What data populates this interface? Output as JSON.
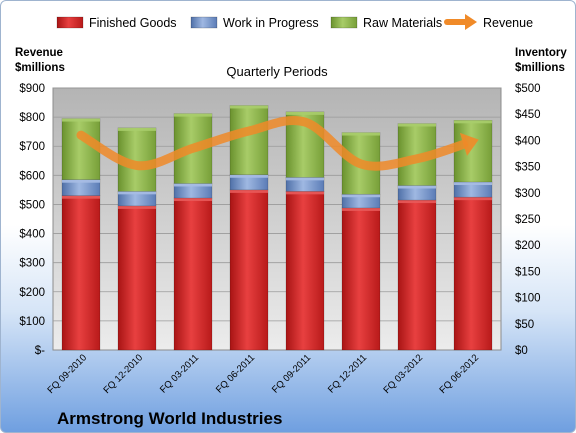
{
  "chart_data": {
    "type": "bar",
    "stacked": true,
    "title": "Quarterly Periods",
    "subtitle": "Armstrong World Industries",
    "categories": [
      "FQ 09-2010",
      "FQ 12-2010",
      "FQ 03-2011",
      "FQ 06-2011",
      "FQ 09-2011",
      "FQ 12-2011",
      "FQ 03-2012",
      "FQ 06-2012"
    ],
    "series": [
      {
        "name": "Finished Goods",
        "axis": "left",
        "color": "#d42020",
        "values": [
          530,
          495,
          522,
          550,
          545,
          488,
          515,
          525
        ]
      },
      {
        "name": "Work in Progress",
        "axis": "left",
        "color": "#6f8fc6",
        "values": [
          55,
          50,
          50,
          52,
          48,
          47,
          50,
          52
        ]
      },
      {
        "name": "Raw Materials",
        "axis": "left",
        "color": "#8ab24a",
        "values": [
          210,
          218,
          240,
          238,
          225,
          212,
          213,
          212
        ]
      },
      {
        "name": "Revenue",
        "axis": "right",
        "type": "line",
        "color": "#f08a28",
        "values": [
          410,
          352,
          385,
          418,
          435,
          355,
          365,
          398
        ]
      }
    ],
    "left_axis": {
      "label": "Revenue\n$millions",
      "label_lines": [
        "Revenue",
        "$millions"
      ],
      "ylim": [
        0,
        900
      ],
      "ticks": [
        "$-",
        "$100",
        "$200",
        "$300",
        "$400",
        "$500",
        "$600",
        "$700",
        "$800",
        "$900"
      ]
    },
    "right_axis": {
      "label": "Inventory\n$millions",
      "label_lines": [
        "Inventory",
        "$millions"
      ],
      "ylim": [
        0,
        500
      ],
      "ticks": [
        "$0",
        "$50",
        "$100",
        "$150",
        "$200",
        "$250",
        "$300",
        "$350",
        "$400",
        "$450",
        "$500"
      ]
    },
    "grid": true,
    "legend_position": "top",
    "plot_background": "#c8c8c8"
  }
}
